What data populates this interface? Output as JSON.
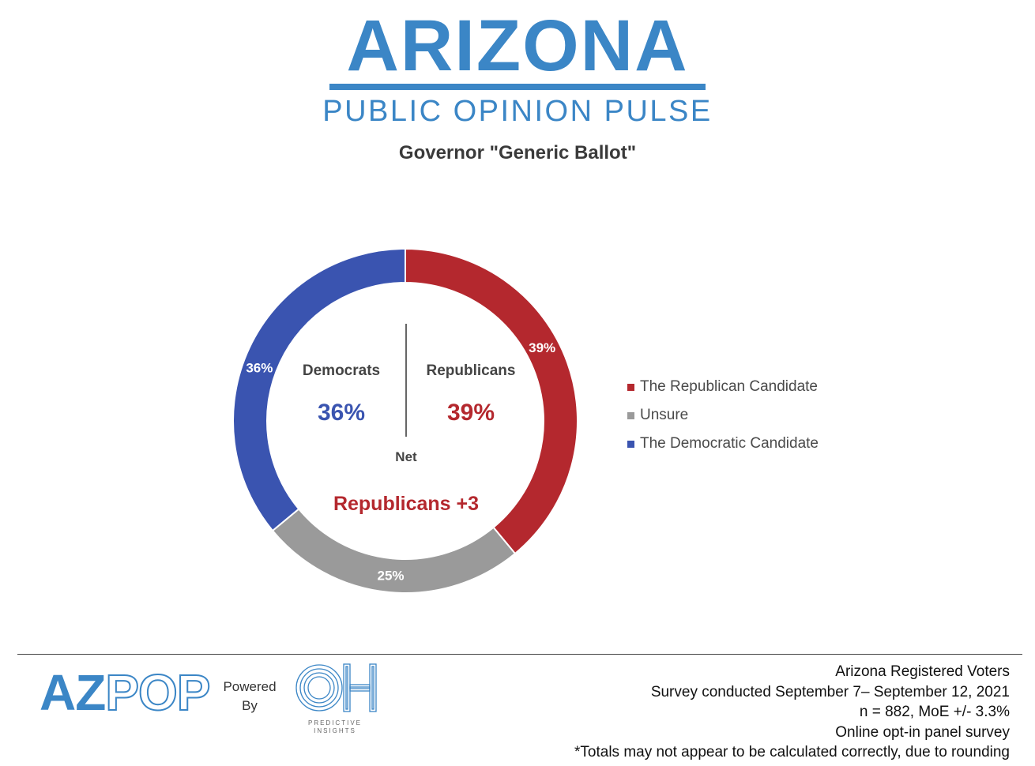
{
  "header": {
    "logo_title": "ARIZONA",
    "logo_subtitle": "PUBLIC OPINION PULSE"
  },
  "chart_data": {
    "type": "pie",
    "variant": "donut",
    "title": "Governor \"Generic Ballot\"",
    "slices": [
      {
        "name": "The Republican Candidate",
        "value": 39,
        "label": "39%",
        "color": "#b4282e"
      },
      {
        "name": "Unsure",
        "value": 25,
        "label": "25%",
        "color": "#9a9a9a"
      },
      {
        "name": "The Democratic Candidate",
        "value": 36,
        "label": "36%",
        "color": "#3a54b0"
      }
    ],
    "legend_position": "right",
    "center": {
      "dem_label": "Democrats",
      "dem_value": "36%",
      "rep_label": "Republicans",
      "rep_value": "39%",
      "net_label": "Net",
      "net_value": "Republicans +3"
    }
  },
  "footer": {
    "brand_az": "AZ",
    "brand_pop": "POP",
    "powered_line1": "Powered",
    "powered_line2": "By",
    "oh_caption_line1": "PREDICTIVE",
    "oh_caption_line2": "INSIGHTS",
    "notes": [
      "Arizona Registered Voters",
      "Survey conducted September 7– September 12, 2021",
      "n = 882, MoE +/- 3.3%",
      "Online opt-in panel survey",
      "*Totals may not appear to be calculated correctly, due to rounding"
    ]
  }
}
